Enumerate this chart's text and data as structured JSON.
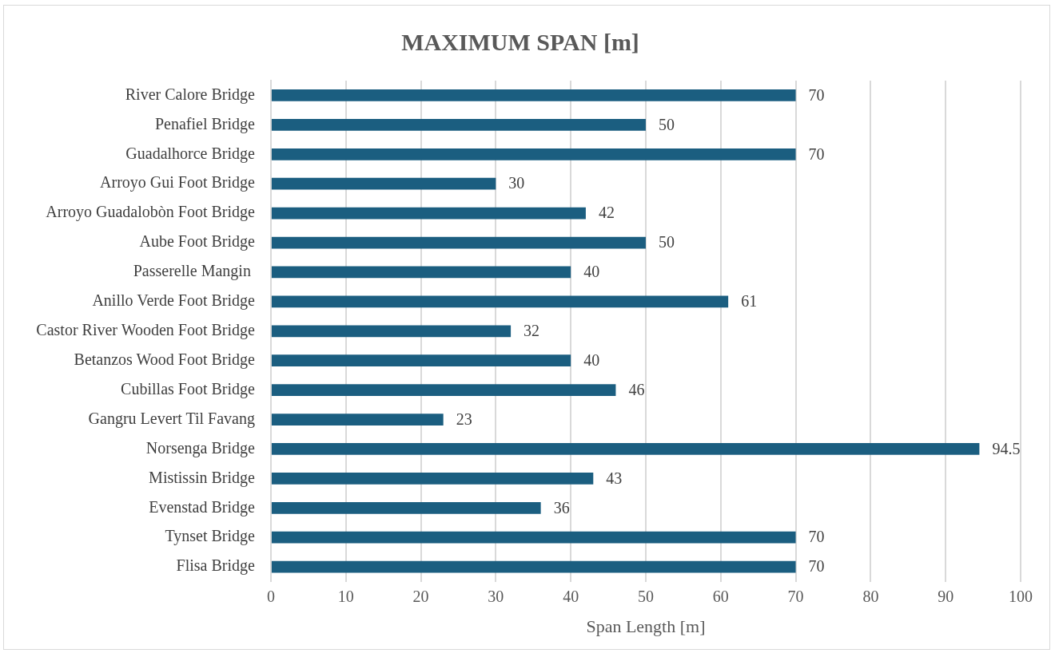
{
  "chart_data": {
    "type": "bar",
    "orientation": "horizontal",
    "title": "MAXIMUM SPAN [m]",
    "xlabel": "Span Length [m]",
    "categories": [
      "River Calore Bridge",
      "Penafiel Bridge",
      "Guadalhorce Bridge",
      "Arroyo Gui Foot Bridge",
      "Arroyo Guadalobòn Foot Bridge",
      "Aube Foot Bridge",
      "Passerelle Mangin ",
      "Anillo Verde Foot Bridge",
      "Castor River Wooden Foot Bridge",
      "Betanzos Wood Foot Bridge",
      "Cubillas Foot Bridge",
      "Gangru Levert Til Favang",
      "Norsenga Bridge",
      "Mistissin Bridge",
      "Evenstad Bridge",
      "Tynset Bridge",
      "Flisa Bridge"
    ],
    "values": [
      70,
      50,
      70,
      30,
      42,
      50,
      40,
      61,
      32,
      40,
      46,
      23,
      94.5,
      43,
      36,
      70,
      70
    ],
    "color": "#1b5e80",
    "xlim": [
      0,
      100
    ],
    "xticks": [
      0,
      10,
      20,
      30,
      40,
      50,
      60,
      70,
      80,
      90,
      100
    ],
    "grid": "x",
    "data_labels": true
  }
}
